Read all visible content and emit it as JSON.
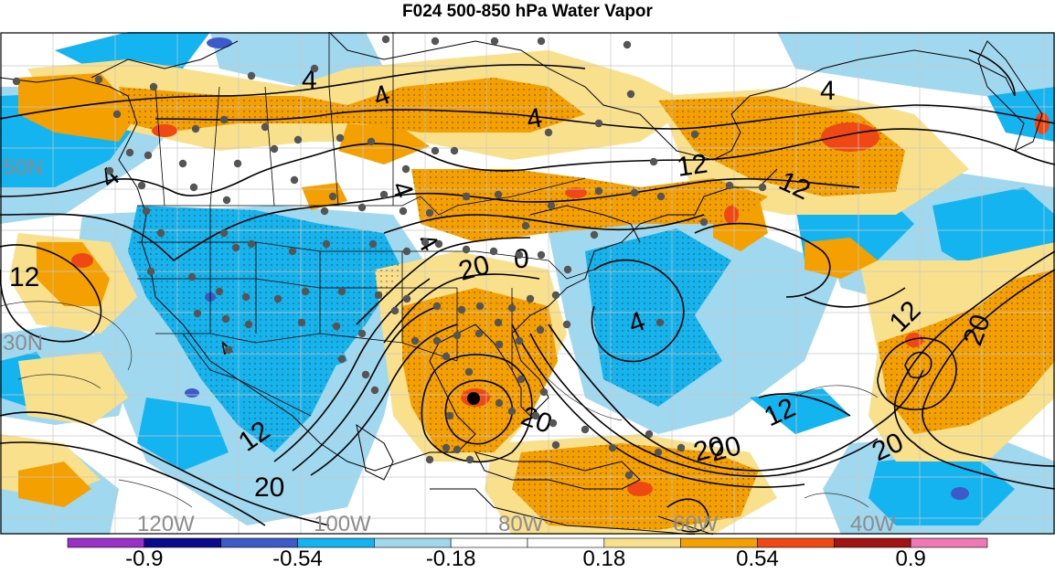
{
  "title": "F024 500-850 hPa Water Vapor",
  "map": {
    "lon_labels": [
      "120W",
      "100W",
      "80W",
      "60W",
      "40W"
    ],
    "lat_labels": [
      "50N",
      "30N"
    ],
    "contour_labels": [
      "4",
      "4",
      "4",
      "4",
      "12",
      "12",
      "4",
      "4",
      "4",
      "20",
      "0",
      "12",
      "20",
      "4",
      "12",
      "20",
      "12",
      "20",
      "20",
      "20",
      "20",
      "12",
      "4"
    ],
    "label_color": "#8c8c8c",
    "contour_color": "#000000",
    "station_color": "#555555"
  },
  "colorbar": {
    "tick_labels": [
      "-0.9",
      "-0.54",
      "-0.18",
      "0.18",
      "0.54",
      "0.9"
    ],
    "segments": [
      {
        "color": "#9b30c8"
      },
      {
        "color": "#0a0a8c"
      },
      {
        "color": "#3c5ac8"
      },
      {
        "color": "#14b4f0"
      },
      {
        "color": "#a0d8f0"
      },
      {
        "color": "#ffffff"
      },
      {
        "color": "#ffffff"
      },
      {
        "color": "#f8e08c"
      },
      {
        "color": "#f4a000"
      },
      {
        "color": "#f04814"
      },
      {
        "color": "#a01414"
      },
      {
        "color": "#f078b4"
      }
    ]
  }
}
